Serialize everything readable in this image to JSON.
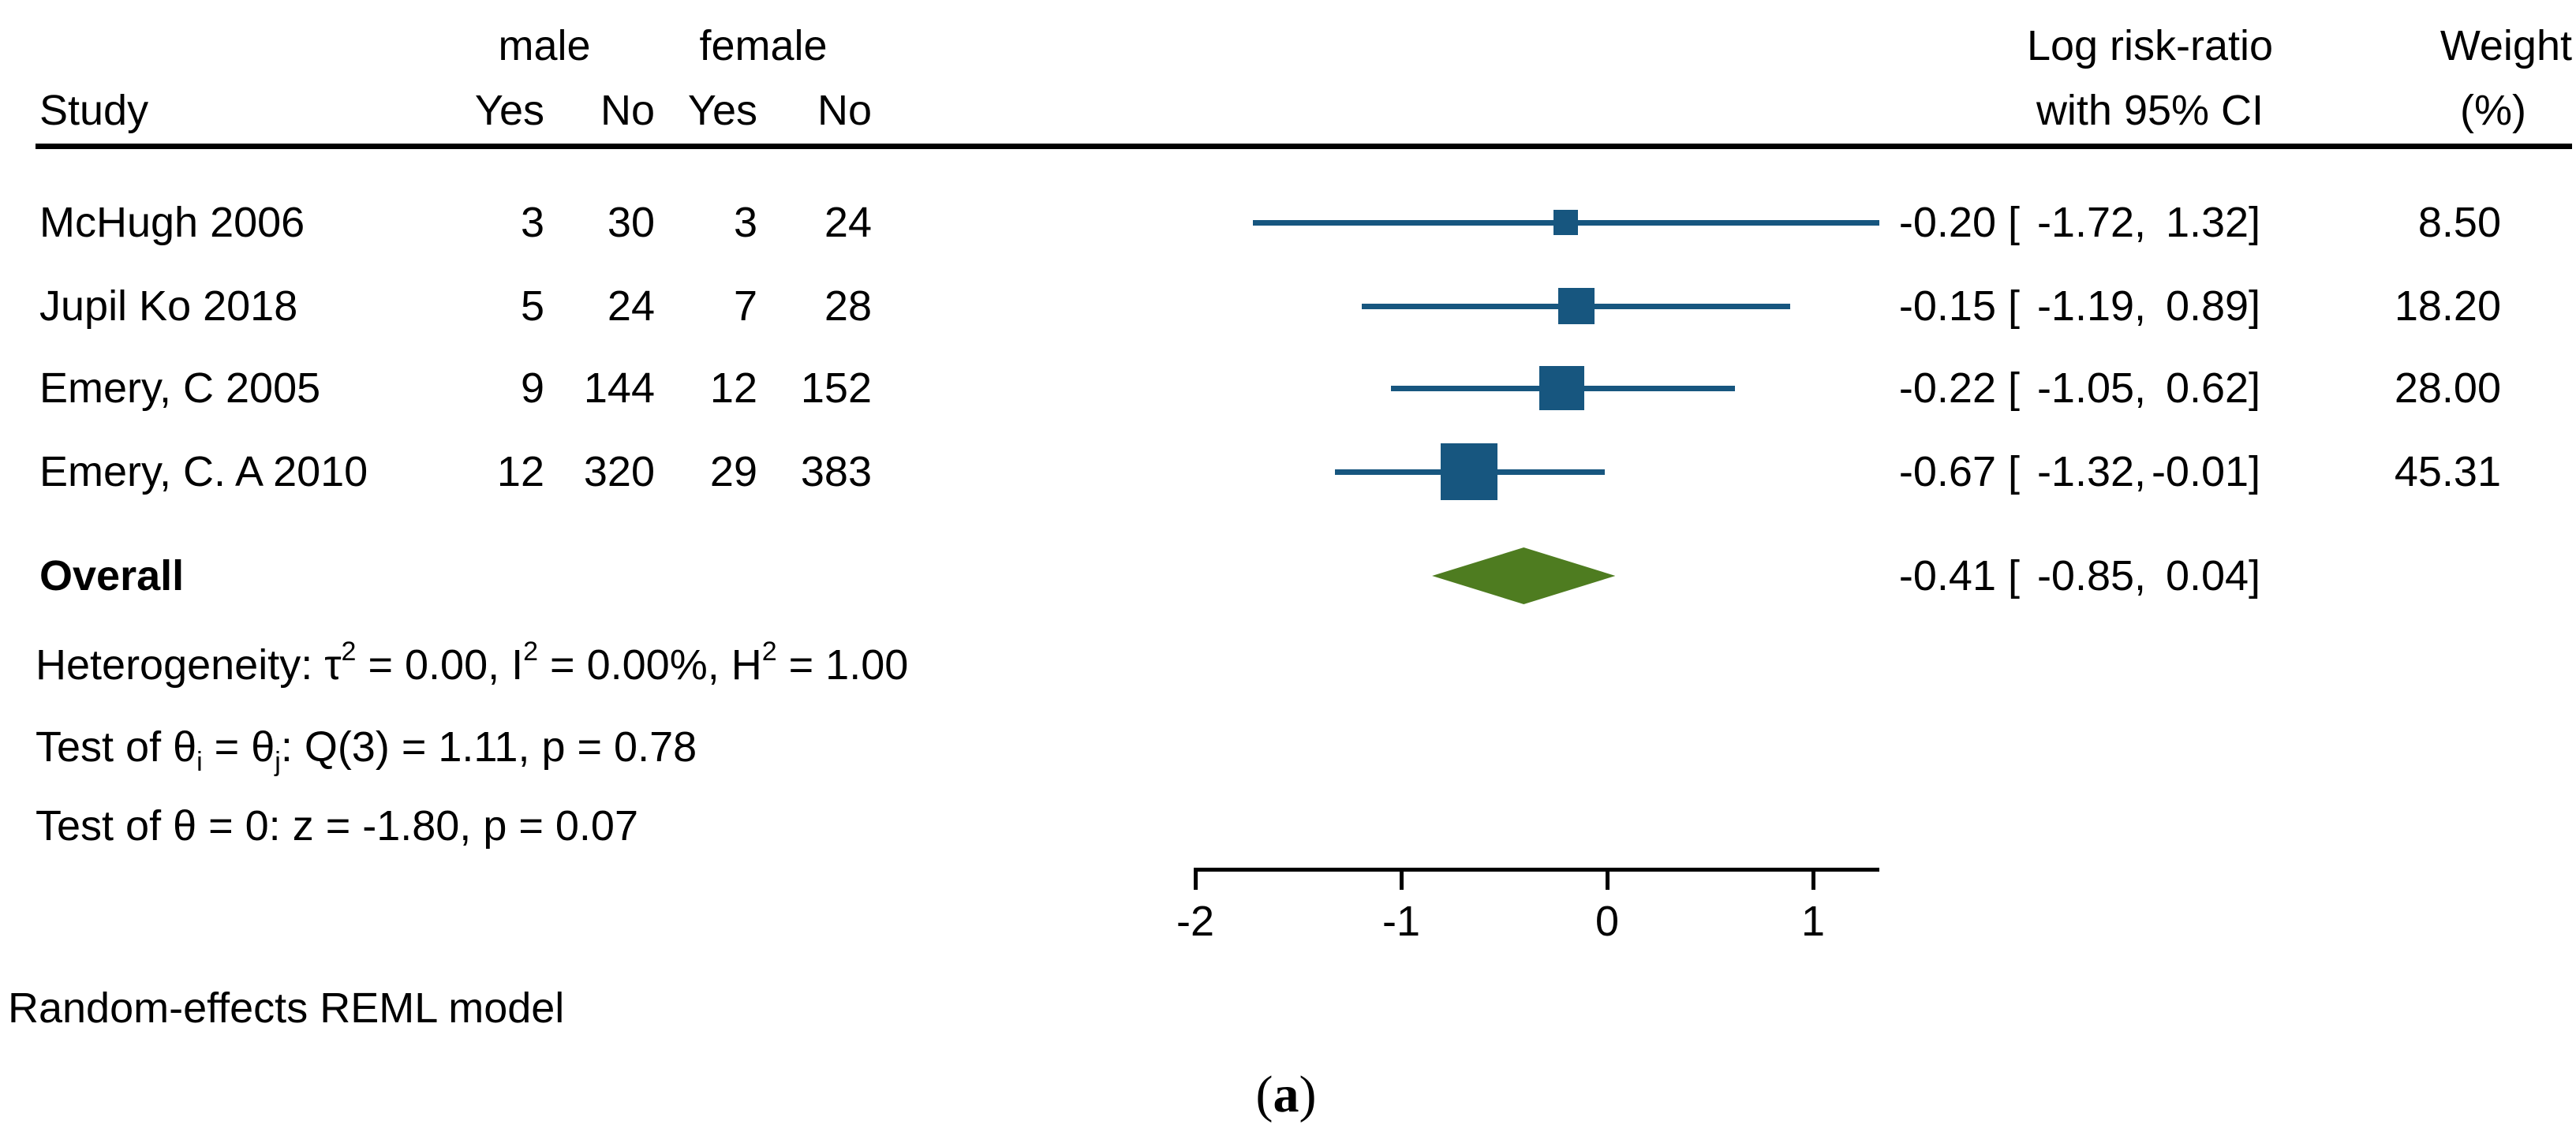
{
  "header": {
    "study": "Study",
    "group_male": "male",
    "group_female": "female",
    "male_yes": "Yes",
    "male_no": "No",
    "female_yes": "Yes",
    "female_no": "No",
    "effect_line1": "Log risk-ratio",
    "effect_line2": "with 95% CI",
    "weight_line1": "Weight",
    "weight_line2": "(%)"
  },
  "ci_format": {
    "open": "[",
    "comma": ",",
    "close": "]"
  },
  "rows": [
    {
      "study": "McHugh 2006",
      "male_yes": "3",
      "male_no": "30",
      "female_yes": "3",
      "female_no": "24",
      "est": "-0.20",
      "lo": "-1.72",
      "hi": "1.32",
      "weight": "8.50"
    },
    {
      "study": "Jupil Ko 2018",
      "male_yes": "5",
      "male_no": "24",
      "female_yes": "7",
      "female_no": "28",
      "est": "-0.15",
      "lo": "-1.19",
      "hi": "0.89",
      "weight": "18.20"
    },
    {
      "study": "Emery, C 2005",
      "male_yes": "9",
      "male_no": "144",
      "female_yes": "12",
      "female_no": "152",
      "est": "-0.22",
      "lo": "-1.05",
      "hi": "0.62",
      "weight": "28.00"
    },
    {
      "study": "Emery, C. A 2010",
      "male_yes": "12",
      "male_no": "320",
      "female_yes": "29",
      "female_no": "383",
      "est": "-0.67",
      "lo": "-1.32",
      "hi": "-0.01",
      "weight": "45.31"
    }
  ],
  "overall": {
    "label": "Overall",
    "est": "-0.41",
    "lo": "-0.85",
    "hi": "0.04"
  },
  "stats": {
    "heterogeneity": [
      {
        "t": "Heterogeneity: τ"
      },
      {
        "sup": "2"
      },
      {
        "t": " = 0.00, I"
      },
      {
        "sup": "2"
      },
      {
        "t": " = 0.00%, H"
      },
      {
        "sup": "2"
      },
      {
        "t": " = 1.00"
      }
    ],
    "test_theta": [
      {
        "t": "Test of θ"
      },
      {
        "sub": "i"
      },
      {
        "t": " = θ"
      },
      {
        "sub": "j"
      },
      {
        "t": ": Q(3) = 1.11, p = 0.78"
      }
    ],
    "test_zero": [
      {
        "t": "Test of θ = 0: z = -1.80, p = 0.07"
      }
    ]
  },
  "axis": {
    "ticks": [
      "-2",
      "-1",
      "0",
      "1"
    ]
  },
  "footnote": "Random-effects REML model",
  "caption": {
    "open": "(",
    "letter": "a",
    "close": ")"
  },
  "colors": {
    "marker": "#17567f",
    "diamond": "#4e7c20",
    "text": "#000000"
  },
  "chart_data": {
    "type": "scatter",
    "subtype": "forest-plot",
    "title": "",
    "effect_label": "Log risk-ratio with 95% CI",
    "studies": [
      {
        "label": "McHugh 2006",
        "male_yes": 3,
        "male_no": 30,
        "female_yes": 3,
        "female_no": 24,
        "estimate": -0.2,
        "ci_low": -1.72,
        "ci_high": 1.32,
        "weight_pct": 8.5
      },
      {
        "label": "Jupil Ko 2018",
        "male_yes": 5,
        "male_no": 24,
        "female_yes": 7,
        "female_no": 28,
        "estimate": -0.15,
        "ci_low": -1.19,
        "ci_high": 0.89,
        "weight_pct": 18.2
      },
      {
        "label": "Emery, C 2005",
        "male_yes": 9,
        "male_no": 144,
        "female_yes": 12,
        "female_no": 152,
        "estimate": -0.22,
        "ci_low": -1.05,
        "ci_high": 0.62,
        "weight_pct": 28.0
      },
      {
        "label": "Emery, C. A 2010",
        "male_yes": 12,
        "male_no": 320,
        "female_yes": 29,
        "female_no": 383,
        "estimate": -0.67,
        "ci_low": -1.32,
        "ci_high": -0.01,
        "weight_pct": 45.31
      }
    ],
    "overall": {
      "label": "Overall",
      "estimate": -0.41,
      "ci_low": -0.85,
      "ci_high": 0.04
    },
    "x_ticks": [
      -2,
      -1,
      0,
      1
    ],
    "xlim": [
      -2,
      1.32
    ],
    "heterogeneity": {
      "tau2": 0.0,
      "I2_pct": 0.0,
      "H2": 1.0
    },
    "test_homogeneity": {
      "Q": 1.11,
      "df": 3,
      "p": 0.78
    },
    "test_overall": {
      "z": -1.8,
      "p": 0.07
    },
    "model": "Random-effects REML model",
    "panel": "(a)",
    "legend_position": "none",
    "grid": false
  }
}
